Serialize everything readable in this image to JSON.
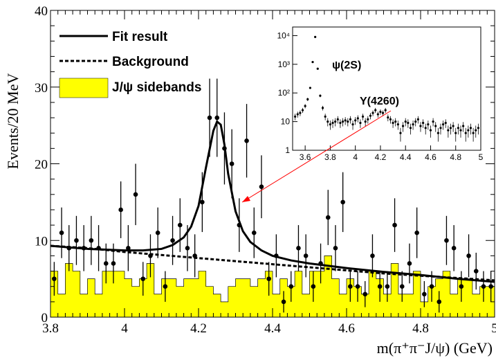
{
  "chart_data": [
    {
      "type": "scatter",
      "xlabel": "m(π⁺π⁻J/ψ) (GeV)",
      "ylabel": "Events/20 MeV",
      "xlim": [
        3.8,
        5.0
      ],
      "ylim": [
        0,
        40
      ],
      "x_ticks": [
        "3.8",
        "4",
        "4.2",
        "4.4",
        "4.6",
        "4.8",
        "5"
      ],
      "y_ticks": [
        "0",
        "10",
        "20",
        "30",
        "40"
      ],
      "grid": false,
      "legend_position": "top-left",
      "legend": [
        {
          "label": "Fit result",
          "style": "solid-line"
        },
        {
          "label": "Background",
          "style": "dashed-line"
        },
        {
          "label": "J/ψ sidebands",
          "style": "yellow-fill"
        }
      ],
      "colors": {
        "sidebands": "#ffff00",
        "data": "#000000",
        "arrow": "#ff0000"
      },
      "data_points": {
        "x": [
          3.81,
          3.83,
          3.85,
          3.87,
          3.89,
          3.91,
          3.93,
          3.95,
          3.97,
          3.99,
          4.01,
          4.03,
          4.05,
          4.07,
          4.09,
          4.11,
          4.13,
          4.15,
          4.17,
          4.19,
          4.21,
          4.23,
          4.25,
          4.27,
          4.29,
          4.31,
          4.33,
          4.35,
          4.37,
          4.39,
          4.41,
          4.43,
          4.45,
          4.47,
          4.49,
          4.51,
          4.53,
          4.55,
          4.57,
          4.59,
          4.61,
          4.63,
          4.65,
          4.67,
          4.69,
          4.71,
          4.73,
          4.75,
          4.77,
          4.79,
          4.81,
          4.83,
          4.85,
          4.87,
          4.89,
          4.91,
          4.93,
          4.95,
          4.97,
          4.99
        ],
        "y": [
          5,
          11,
          9,
          10,
          9,
          10,
          9,
          7,
          7,
          14,
          9,
          16,
          5,
          8,
          11,
          4,
          10,
          12,
          9,
          8,
          15,
          26,
          26,
          22,
          20,
          12,
          23,
          11,
          17,
          5,
          8,
          2,
          4,
          9,
          8,
          4,
          7,
          13,
          9,
          15,
          4,
          4,
          3,
          8,
          4,
          4,
          12,
          4,
          7,
          11,
          3,
          4,
          2,
          10,
          9,
          4,
          8,
          6,
          4,
          4
        ],
        "err": [
          2.2,
          3.3,
          3,
          3.2,
          3,
          3.2,
          3,
          2.6,
          2.6,
          3.7,
          3,
          4,
          2.2,
          2.8,
          3.3,
          2,
          3.2,
          3.5,
          3,
          2.8,
          3.9,
          5.1,
          5.1,
          4.7,
          4.5,
          3.5,
          4.8,
          3.3,
          4.1,
          2.2,
          2.8,
          1.4,
          2,
          3,
          2.8,
          2,
          2.6,
          3.6,
          3,
          3.9,
          2,
          2,
          1.7,
          2.8,
          2,
          2,
          3.5,
          2,
          2.6,
          3.3,
          1.7,
          2,
          1.4,
          3.2,
          3,
          2,
          2.8,
          2.4,
          2,
          2
        ]
      },
      "fit_result": {
        "x": [
          3.8,
          3.85,
          3.9,
          3.95,
          4.0,
          4.05,
          4.1,
          4.13,
          4.16,
          4.18,
          4.2,
          4.22,
          4.24,
          4.25,
          4.26,
          4.27,
          4.28,
          4.3,
          4.32,
          4.34,
          4.37,
          4.4,
          4.45,
          4.5,
          4.6,
          4.7,
          4.8,
          4.9,
          5.0
        ],
        "y": [
          9.3,
          9.1,
          8.9,
          8.8,
          8.7,
          8.7,
          8.9,
          9.4,
          10.4,
          11.8,
          14.5,
          19.5,
          24.3,
          25.5,
          25.1,
          22.5,
          18.7,
          13.8,
          11.2,
          9.8,
          8.7,
          8.0,
          7.4,
          7.0,
          6.4,
          5.9,
          5.5,
          5.0,
          4.6
        ]
      },
      "background": {
        "x": [
          3.8,
          3.9,
          4.0,
          4.1,
          4.2,
          4.3,
          4.4,
          4.5,
          4.6,
          4.7,
          4.8,
          4.9,
          5.0
        ],
        "y": [
          9.3,
          9.0,
          8.5,
          8.1,
          7.7,
          7.3,
          6.9,
          6.5,
          6.1,
          5.7,
          5.4,
          5.1,
          4.8
        ]
      },
      "sidebands": {
        "bin_width": 0.02,
        "x_start": 3.8,
        "values": [
          6,
          3,
          7,
          6,
          3,
          5,
          3,
          6,
          6,
          6,
          5,
          4,
          5,
          7,
          3,
          5,
          5,
          4,
          5,
          5,
          6,
          4,
          3,
          2,
          4,
          5,
          5,
          4,
          5,
          6,
          3,
          5,
          4,
          6,
          3,
          6,
          6,
          8,
          5,
          3,
          5,
          4,
          3,
          6,
          5,
          3,
          7,
          3,
          3,
          6,
          2,
          4,
          5,
          6,
          3,
          5,
          5,
          3,
          4,
          4
        ]
      }
    },
    {
      "type": "scatter",
      "yscale": "log",
      "xlim": [
        3.5,
        5.0
      ],
      "ylim": [
        1,
        20000
      ],
      "x_ticks": [
        "3.6",
        "3.8",
        "4",
        "4.2",
        "4.4",
        "4.6",
        "4.8",
        "5"
      ],
      "y_ticks": [
        "1",
        "10",
        "10²",
        "10³",
        "10⁴"
      ],
      "annotations": [
        "ψ(2S)",
        "Y(4260)"
      ],
      "data_points": {
        "x": [
          3.52,
          3.54,
          3.56,
          3.58,
          3.6,
          3.62,
          3.64,
          3.66,
          3.68,
          3.7,
          3.72,
          3.74,
          3.76,
          3.78,
          3.8,
          3.82,
          3.84,
          3.86,
          3.88,
          3.9,
          3.92,
          3.94,
          3.96,
          3.98,
          4.0,
          4.02,
          4.04,
          4.06,
          4.08,
          4.1,
          4.12,
          4.14,
          4.16,
          4.18,
          4.2,
          4.22,
          4.24,
          4.26,
          4.28,
          4.3,
          4.32,
          4.34,
          4.36,
          4.38,
          4.4,
          4.42,
          4.44,
          4.46,
          4.48,
          4.5,
          4.52,
          4.54,
          4.56,
          4.58,
          4.6,
          4.62,
          4.64,
          4.66,
          4.68,
          4.7,
          4.72,
          4.74,
          4.76,
          4.78,
          4.8,
          4.82,
          4.84,
          4.86,
          4.88,
          4.9,
          4.92,
          4.94,
          4.96,
          4.98
        ],
        "y": [
          15,
          18,
          20,
          25,
          35,
          60,
          150,
          1200,
          9000,
          700,
          80,
          30,
          15,
          10,
          8,
          9,
          10,
          12,
          9,
          10,
          11,
          10,
          12,
          8,
          11,
          13,
          9,
          15,
          10,
          12,
          16,
          20,
          25,
          18,
          22,
          20,
          25,
          14,
          12,
          9,
          10,
          8,
          4,
          7,
          10,
          9,
          6,
          8,
          10,
          12,
          7,
          9,
          6,
          8,
          5,
          10,
          7,
          4,
          6,
          8,
          9,
          5,
          6,
          7,
          4,
          6,
          5,
          7,
          4,
          5,
          6,
          4,
          5,
          6
        ]
      }
    }
  ]
}
